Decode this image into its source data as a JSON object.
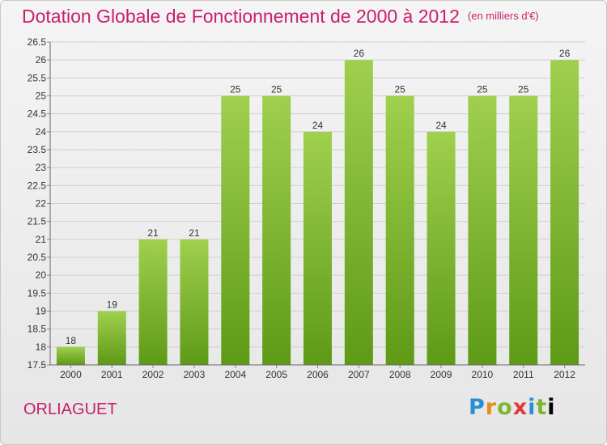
{
  "title": "Dotation Globale de Fonctionnement de 2000 à 2012",
  "subtitle": "(en milliers d'€)",
  "commune": "ORLIAGUET",
  "logo_letters": [
    "P",
    "r",
    "o",
    "x",
    "i",
    "t",
    "i"
  ],
  "colors": {
    "title": "#c81e6e",
    "bar_light": "#9fd04e",
    "bar_dark": "#5e9a16",
    "grid": "#cfcfcf"
  },
  "chart_data": {
    "type": "bar",
    "categories": [
      "2000",
      "2001",
      "2002",
      "2003",
      "2004",
      "2005",
      "2006",
      "2007",
      "2008",
      "2009",
      "2010",
      "2011",
      "2012"
    ],
    "values": [
      18,
      19,
      21,
      21,
      25,
      25,
      24,
      26,
      25,
      24,
      25,
      25,
      26
    ],
    "ylim": [
      17.5,
      26.5
    ],
    "yticks": [
      "17.5",
      "18",
      "18.5",
      "19",
      "19.5",
      "20",
      "20.5",
      "21",
      "21.5",
      "22",
      "22.5",
      "23",
      "23.5",
      "24",
      "24.5",
      "25",
      "25.5",
      "26",
      "26.5"
    ],
    "grid": true,
    "xlabel": "",
    "ylabel": ""
  }
}
